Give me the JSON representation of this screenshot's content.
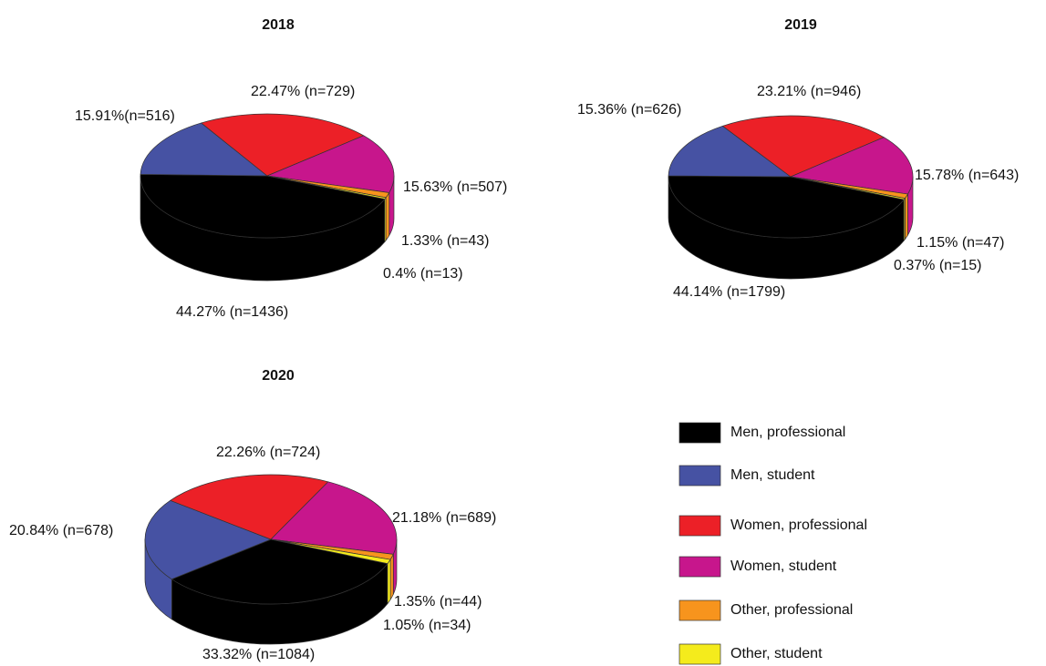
{
  "chart_data": [
    {
      "type": "pie",
      "title": "2018",
      "values": [
        44.27,
        15.91,
        22.47,
        15.63,
        1.33,
        0.4
      ],
      "value_labels": [
        "44.27% (n=1436)",
        "15.91%(n=516)",
        "22.47% (n=729)",
        "15.63% (n=507)",
        "1.33% (n=43)",
        "0.4% (n=13)"
      ]
    },
    {
      "type": "pie",
      "title": "2019",
      "values": [
        44.14,
        15.36,
        23.21,
        15.78,
        1.15,
        0.37
      ],
      "value_labels": [
        "44.14% (n=1799)",
        "15.36% (n=626)",
        "23.21% (n=946)",
        "15.78% (n=643)",
        "1.15% (n=47)",
        "0.37% (n=15)"
      ]
    },
    {
      "type": "pie",
      "title": "2020",
      "values": [
        33.32,
        20.84,
        22.26,
        21.18,
        1.35,
        1.05
      ],
      "value_labels": [
        "33.32% (n=1084)",
        "20.84% (n=678)",
        "22.26% (n=724)",
        "21.18% (n=689)",
        "1.35% (n=44)",
        "1.05% (n=34)"
      ]
    }
  ],
  "legend": {
    "labels": [
      "Men, professional",
      "Men, student",
      "Women, professional",
      "Women, student",
      "Other, professional",
      "Other, student"
    ],
    "colors": [
      "#000000",
      "#4652a3",
      "#ec2027",
      "#c7168c",
      "#f7941d",
      "#f4eb1c"
    ]
  }
}
